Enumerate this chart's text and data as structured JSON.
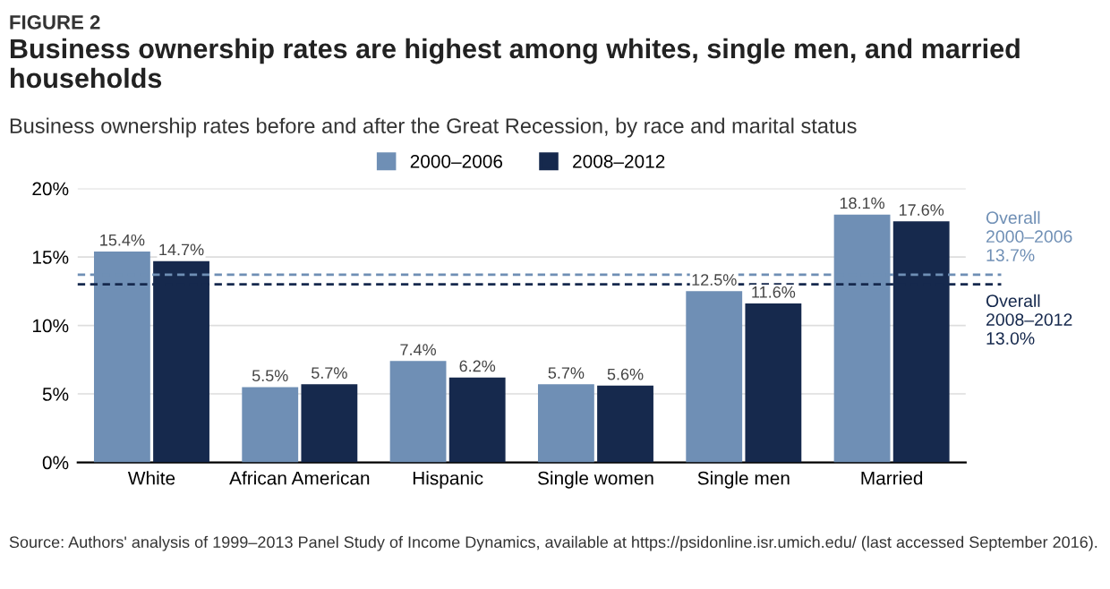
{
  "chart_data": {
    "type": "bar",
    "title": "Business ownership rates are highest among whites, single men, and married households",
    "subtitle": "Business ownership rates before and after the Great Recession, by race and marital status",
    "annotations": [
      "FIGURE 2",
      "Source: Authors' analysis of 1999–2013 Panel Study of Income Dynamics, available at https://psidonline.isr.umich.edu/ (last accessed September 2016)."
    ],
    "categories": [
      "White",
      "African American",
      "Hispanic",
      "Single women",
      "Single men",
      "Married"
    ],
    "series": [
      {
        "name": "2000–2006",
        "color": "#6f8fb5",
        "values": [
          15.4,
          5.5,
          7.4,
          5.7,
          12.5,
          18.1
        ],
        "value_labels": [
          "15.4%",
          "5.5%",
          "7.4%",
          "5.7%",
          "12.5%",
          "18.1%"
        ]
      },
      {
        "name": "2008–2012",
        "color": "#16294d",
        "values": [
          14.7,
          5.7,
          6.2,
          5.6,
          11.6,
          17.6
        ],
        "value_labels": [
          "14.7%",
          "5.7%",
          "6.2%",
          "5.6%",
          "11.6%",
          "17.6%"
        ]
      }
    ],
    "ylim": [
      0,
      20
    ],
    "yticks": [
      {
        "value": 0,
        "label": "0%"
      },
      {
        "value": 5,
        "label": "5%"
      },
      {
        "value": 10,
        "label": "10%"
      },
      {
        "value": 15,
        "label": "15%"
      },
      {
        "value": 20,
        "label": "20%"
      }
    ],
    "ref_lines": [
      {
        "axis": "y",
        "value": 13.7,
        "label": "Overall\n2000–2006\n13.7%",
        "color": "#6f8fb5",
        "line_style": "dashed"
      },
      {
        "axis": "y",
        "value": 13.0,
        "label": "Overall\n2008–2012\n13.0%",
        "color": "#16294d",
        "line_style": "dashed"
      }
    ],
    "grid": "y",
    "legend": "top"
  }
}
